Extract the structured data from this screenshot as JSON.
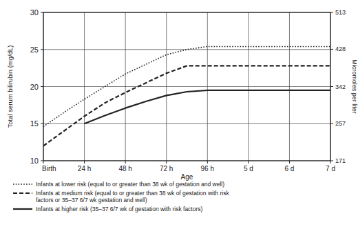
{
  "chart_data": {
    "type": "line",
    "x_label": "Age",
    "y_label": "Total serum bilirubin (mg/dL)",
    "y2_label": "Micromoles per liter",
    "x": [
      0,
      12,
      24,
      36,
      48,
      60,
      72,
      84,
      96,
      120,
      144,
      168
    ],
    "xlim": [
      0,
      168
    ],
    "xticks": [
      {
        "value": 0,
        "label": "Birth"
      },
      {
        "value": 24,
        "label": "24 h"
      },
      {
        "value": 48,
        "label": "48 h"
      },
      {
        "value": 72,
        "label": "72 h"
      },
      {
        "value": 96,
        "label": "96 h"
      },
      {
        "value": 120,
        "label": "5 d"
      },
      {
        "value": 144,
        "label": "6 d"
      },
      {
        "value": 168,
        "label": "7 d"
      }
    ],
    "ylim": [
      10,
      30
    ],
    "yticks": [
      10,
      15,
      20,
      25,
      30
    ],
    "y2lim": [
      171,
      513
    ],
    "y2ticks": [
      171,
      257,
      342,
      428,
      513
    ],
    "grid": true,
    "legend": "bottom",
    "series": [
      {
        "name": "Infants at lower risk (equal to or greater than 38 wk of gestation and well)",
        "color": "#222222",
        "line_style": "dotted",
        "values": [
          14.6,
          16.5,
          18.3,
          20,
          21.7,
          23,
          24.3,
          25,
          25.4,
          25.4,
          25.4,
          25.4
        ]
      },
      {
        "name": "Infants at medium risk (equal to or greater than 38 wk of gestation with risk factors or 35–37 6/7 wk gestation and well)",
        "color": "#222222",
        "line_style": "dashed",
        "values": [
          12,
          14,
          16,
          17.8,
          19.2,
          20.5,
          21.8,
          22.8,
          22.8,
          22.8,
          22.8,
          22.8
        ]
      },
      {
        "name": "Infants at higher risk (35–37 6/7 wk of gestation with risk factors)",
        "color": "#222222",
        "line_style": "solid",
        "values": [
          null,
          null,
          15,
          16.1,
          17.1,
          18,
          18.8,
          19.3,
          19.5,
          19.5,
          19.5,
          19.5
        ]
      }
    ]
  }
}
